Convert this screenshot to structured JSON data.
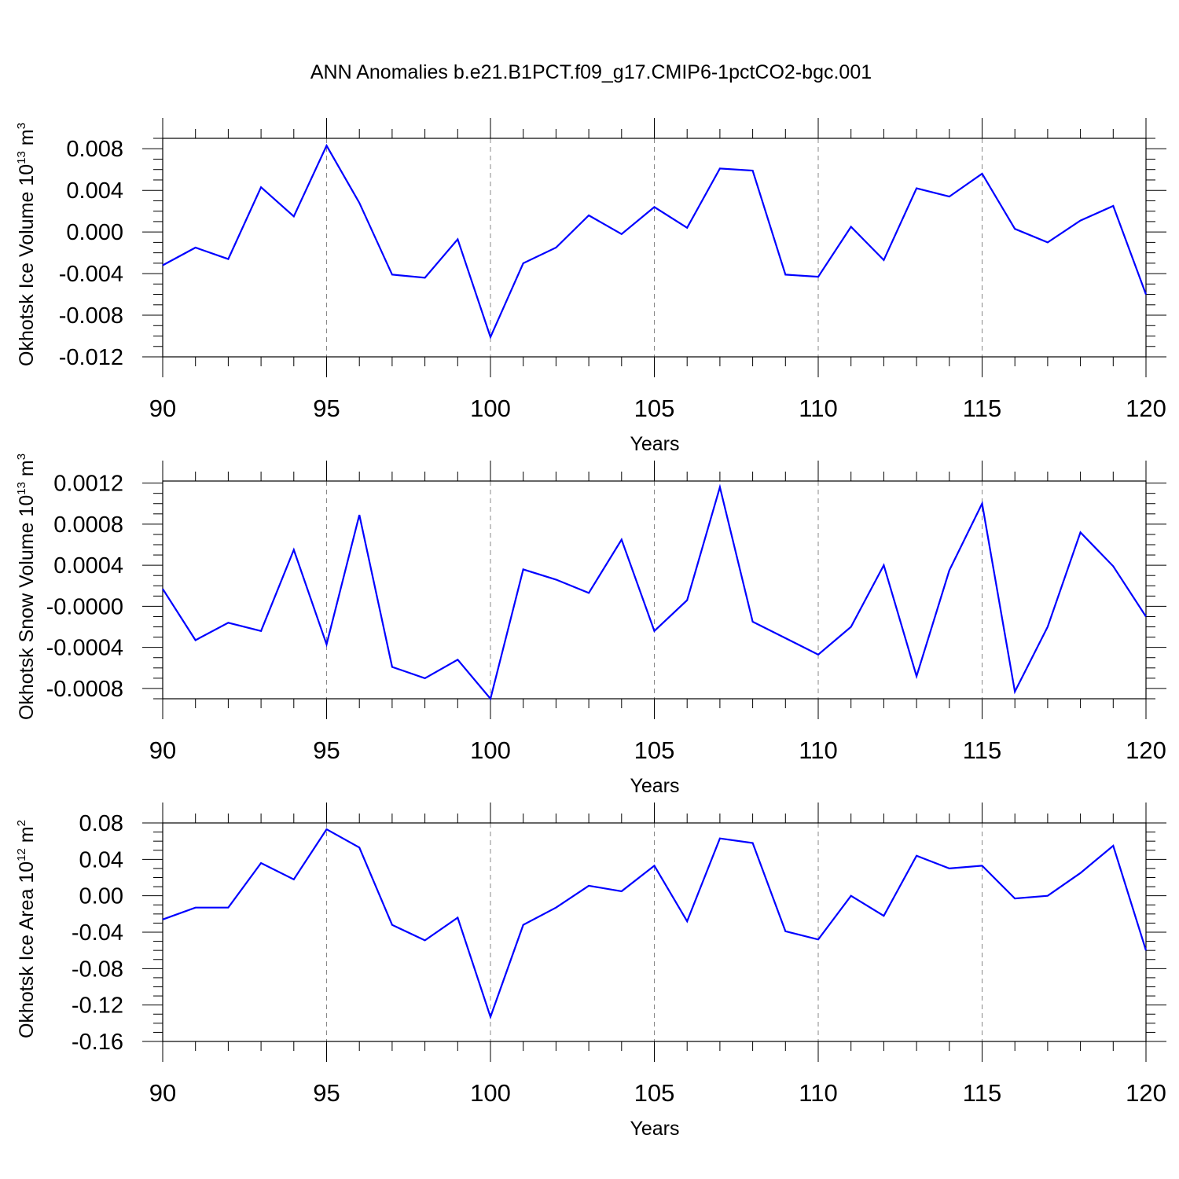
{
  "title": "ANN Anomalies b.e21.B1PCT.f09_g17.CMIP6-1pctCO2-bgc.001",
  "colors": {
    "line": "#0000ff",
    "axis": "#000000",
    "grid": "#888888"
  },
  "chart_data": [
    {
      "type": "line",
      "xlabel": "Years",
      "ylabel": {
        "text": "Okhotsk Ice Volume 10",
        "exponent": "13",
        "unit": " m",
        "unit_exponent": "3"
      },
      "xlim": [
        90,
        120
      ],
      "ylim": [
        -0.012,
        0.009
      ],
      "x_ticks": [
        "90",
        "95",
        "100",
        "105",
        "110",
        "115",
        "120"
      ],
      "y_ticks": [
        {
          "value": 0.008,
          "label": "0.008"
        },
        {
          "value": 0.004,
          "label": "0.004"
        },
        {
          "value": 0.0,
          "label": "0.000"
        },
        {
          "value": -0.004,
          "label": "-0.004"
        },
        {
          "value": -0.008,
          "label": "-0.008"
        },
        {
          "value": -0.012,
          "label": "-0.012"
        }
      ],
      "grid": "vertical dashed at major x ticks",
      "x": [
        90,
        91,
        92,
        93,
        94,
        95,
        96,
        97,
        98,
        99,
        100,
        101,
        102,
        103,
        104,
        105,
        106,
        107,
        108,
        109,
        110,
        111,
        112,
        113,
        114,
        115,
        116,
        117,
        118,
        119,
        120
      ],
      "y": [
        -0.0032,
        -0.0015,
        -0.0026,
        0.0043,
        0.0015,
        0.0083,
        0.0028,
        -0.0041,
        -0.0044,
        -0.0007,
        -0.0101,
        -0.003,
        -0.0015,
        0.0016,
        -0.0002,
        0.0024,
        0.0004,
        0.0061,
        0.0059,
        -0.0041,
        -0.0043,
        0.0005,
        -0.0027,
        0.0042,
        0.0034,
        0.0056,
        0.0003,
        -0.001,
        0.0011,
        0.0025,
        -0.006
      ]
    },
    {
      "type": "line",
      "xlabel": "Years",
      "ylabel": {
        "text": "Okhotsk Snow Volume 10",
        "exponent": "13",
        "unit": " m",
        "unit_exponent": "3"
      },
      "xlim": [
        90,
        120
      ],
      "ylim": [
        -0.0009,
        0.00122
      ],
      "x_ticks": [
        "90",
        "95",
        "100",
        "105",
        "110",
        "115",
        "120"
      ],
      "y_ticks": [
        {
          "value": 0.0012,
          "label": "0.0012"
        },
        {
          "value": 0.0008,
          "label": "0.0008"
        },
        {
          "value": 0.0004,
          "label": "0.0004"
        },
        {
          "value": 0.0,
          "label": "-0.0000"
        },
        {
          "value": -0.0004,
          "label": "-0.0004"
        },
        {
          "value": -0.0008,
          "label": "-0.0008"
        }
      ],
      "grid": "vertical dashed at major x ticks",
      "x": [
        90,
        91,
        92,
        93,
        94,
        95,
        96,
        97,
        98,
        99,
        100,
        101,
        102,
        103,
        104,
        105,
        106,
        107,
        108,
        109,
        110,
        111,
        112,
        113,
        114,
        115,
        116,
        117,
        118,
        119,
        120
      ],
      "y": [
        0.00017,
        -0.00033,
        -0.00016,
        -0.00024,
        0.00055,
        -0.00037,
        0.00089,
        -0.00059,
        -0.0007,
        -0.00052,
        -0.0009,
        0.00036,
        0.00026,
        0.00013,
        0.00065,
        -0.00024,
        6e-05,
        0.00116,
        -0.00015,
        -0.00031,
        -0.00047,
        -0.0002,
        0.0004,
        -0.00068,
        0.00035,
        0.001,
        -0.00083,
        -0.0002,
        0.00072,
        0.00039,
        -0.0001
      ]
    },
    {
      "type": "line",
      "xlabel": "Years",
      "ylabel": {
        "text": "Okhotsk Ice Area 10",
        "exponent": "12",
        "unit": " m",
        "unit_exponent": "2"
      },
      "xlim": [
        90,
        120
      ],
      "ylim": [
        -0.16,
        0.08
      ],
      "x_ticks": [
        "90",
        "95",
        "100",
        "105",
        "110",
        "115",
        "120"
      ],
      "y_ticks": [
        {
          "value": 0.08,
          "label": "0.08"
        },
        {
          "value": 0.04,
          "label": "0.04"
        },
        {
          "value": 0.0,
          "label": "0.00"
        },
        {
          "value": -0.04,
          "label": "-0.04"
        },
        {
          "value": -0.08,
          "label": "-0.08"
        },
        {
          "value": -0.12,
          "label": "-0.12"
        },
        {
          "value": -0.16,
          "label": "-0.16"
        }
      ],
      "grid": "vertical dashed at major x ticks",
      "x": [
        90,
        91,
        92,
        93,
        94,
        95,
        96,
        97,
        98,
        99,
        100,
        101,
        102,
        103,
        104,
        105,
        106,
        107,
        108,
        109,
        110,
        111,
        112,
        113,
        114,
        115,
        116,
        117,
        118,
        119,
        120
      ],
      "y": [
        -0.026,
        -0.013,
        -0.013,
        0.036,
        0.018,
        0.073,
        0.053,
        -0.032,
        -0.049,
        -0.024,
        -0.133,
        -0.032,
        -0.013,
        0.011,
        0.005,
        0.033,
        -0.028,
        0.063,
        0.058,
        -0.039,
        -0.048,
        0.0,
        -0.022,
        0.044,
        0.03,
        0.033,
        -0.003,
        0.0,
        0.025,
        0.055,
        -0.06
      ]
    }
  ]
}
